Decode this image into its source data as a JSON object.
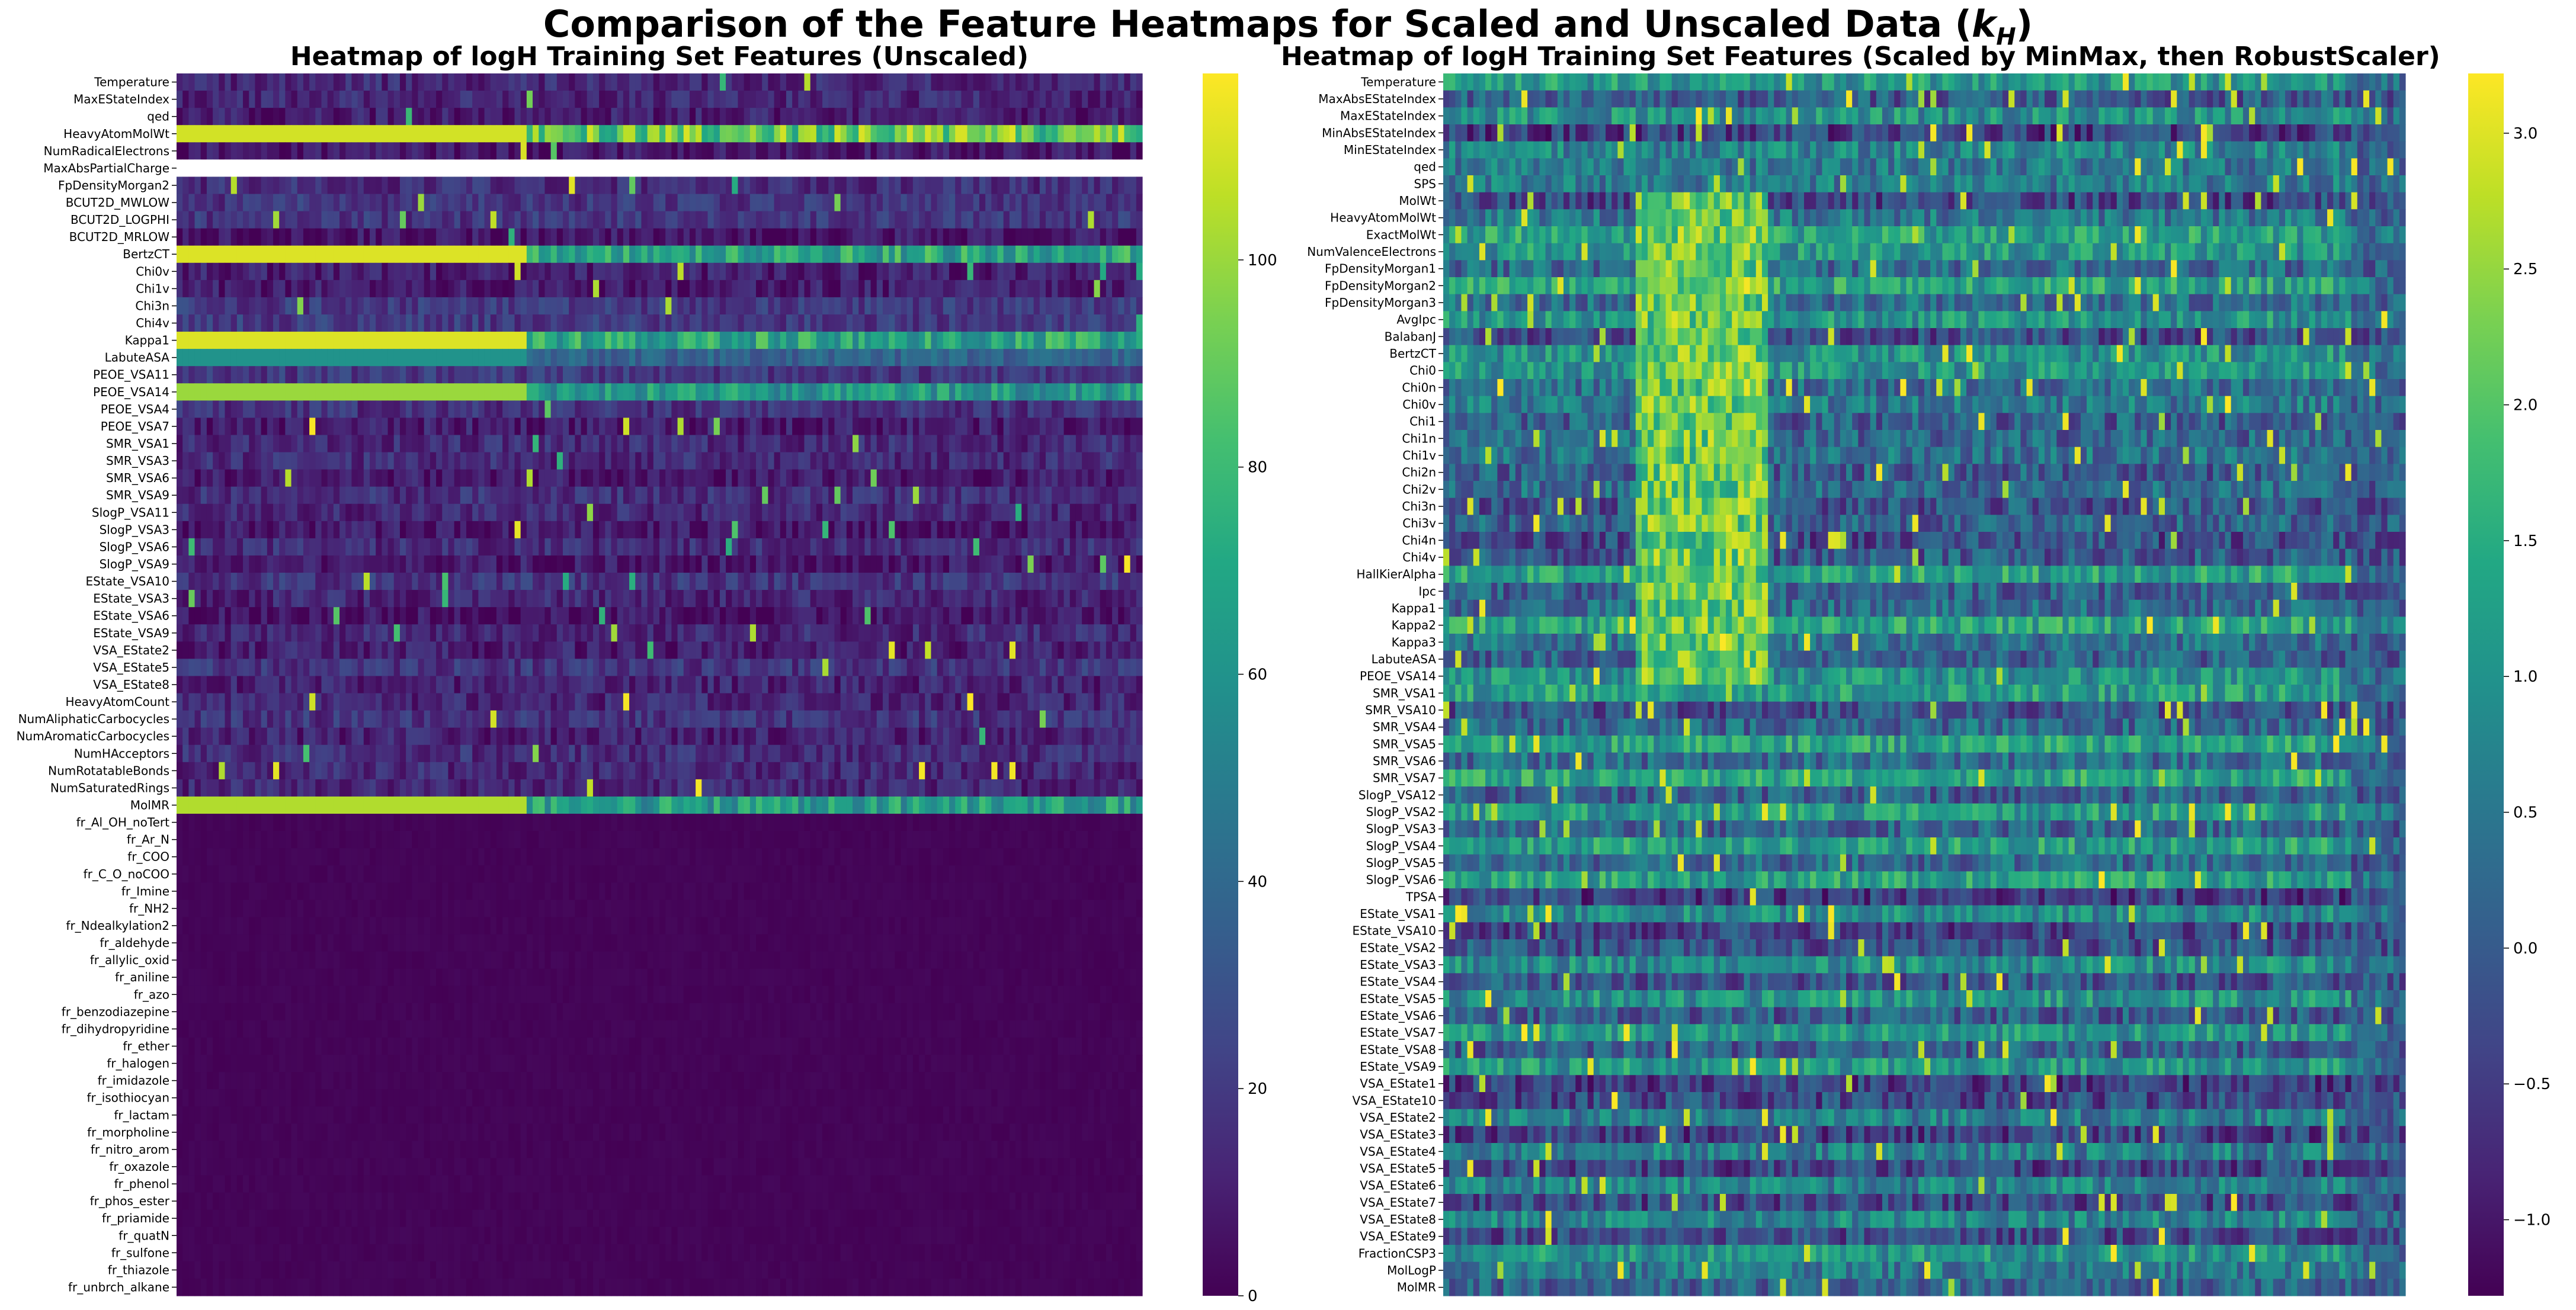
{
  "suptitle": "Comparison of the Feature Heatmaps for Scaled and Unscaled Data (",
  "suptitle_math": "k",
  "suptitle_sub": "H",
  "suptitle_end": ")",
  "colormap": "viridis",
  "colors": {
    "viridis_low": "#440154",
    "viridis_mid": "#21918c",
    "viridis_high": "#fde725",
    "missing": "#ffffff"
  },
  "chart_data": [
    {
      "type": "heatmap",
      "title": "Heatmap of logH Training Set Features (Unscaled)",
      "xlabel": "",
      "ylabel": "",
      "x_tick_labels": "none",
      "colorbar": {
        "range": [
          0,
          118
        ],
        "ticks": [
          0,
          20,
          40,
          60,
          80,
          100
        ]
      },
      "rows": [
        "Temperature",
        "MaxEStateIndex",
        "qed",
        "HeavyAtomMolWt",
        "NumRadicalElectrons",
        "MaxAbsPartialCharge",
        "FpDensityMorgan2",
        "BCUT2D_MWLOW",
        "BCUT2D_LOGPHI",
        "BCUT2D_MRLOW",
        "BertzCT",
        "Chi0v",
        "Chi1v",
        "Chi3n",
        "Chi4v",
        "Kappa1",
        "LabuteASA",
        "PEOE_VSA11",
        "PEOE_VSA14",
        "PEOE_VSA4",
        "PEOE_VSA7",
        "SMR_VSA1",
        "SMR_VSA3",
        "SMR_VSA6",
        "SMR_VSA9",
        "SlogP_VSA11",
        "SlogP_VSA3",
        "SlogP_VSA6",
        "SlogP_VSA9",
        "EState_VSA10",
        "EState_VSA3",
        "EState_VSA6",
        "EState_VSA9",
        "VSA_EState2",
        "VSA_EState5",
        "VSA_EState8",
        "HeavyAtomCount",
        "NumAliphaticCarbocycles",
        "NumAromaticCarbocycles",
        "NumHAcceptors",
        "NumRotatableBonds",
        "NumSaturatedRings",
        "MolMR",
        "fr_Al_OH_noTert",
        "fr_Ar_N",
        "fr_COO",
        "fr_C_O_noCOO",
        "fr_Imine",
        "fr_NH2",
        "fr_Ndealkylation2",
        "fr_aldehyde",
        "fr_allylic_oxid",
        "fr_aniline",
        "fr_azo",
        "fr_benzodiazepine",
        "fr_dihydropyridine",
        "fr_ether",
        "fr_halogen",
        "fr_imidazole",
        "fr_isothiocyan",
        "fr_lactam",
        "fr_morpholine",
        "fr_nitro_arom",
        "fr_oxazole",
        "fr_phenol",
        "fr_phos_ester",
        "fr_priamide",
        "fr_quatN",
        "fr_sulfone",
        "fr_thiazole",
        "fr_unbrch_alkane"
      ],
      "high_value_rows": {
        "HeavyAtomMolWt": 110,
        "BertzCT": 112,
        "Kappa1": 112,
        "PEOE_VSA14": 100,
        "MolMR": 104,
        "LabuteASA": 60
      },
      "missing_rows": [
        "MaxAbsPartialCharge"
      ]
    },
    {
      "type": "heatmap",
      "title": "Heatmap of logH Training Set Features (Scaled by MinMax, then RobustScaler)",
      "xlabel": "",
      "ylabel": "",
      "x_tick_labels": "none",
      "colorbar": {
        "range": [
          -1.28,
          3.22
        ],
        "ticks": [
          -1.0,
          -0.5,
          0.0,
          0.5,
          1.0,
          1.5,
          2.0,
          2.5,
          3.0
        ]
      },
      "rows": [
        "Temperature",
        "MaxAbsEStateIndex",
        "MaxEStateIndex",
        "MinAbsEStateIndex",
        "MinEStateIndex",
        "qed",
        "SPS",
        "MolWt",
        "HeavyAtomMolWt",
        "ExactMolWt",
        "NumValenceElectrons",
        "FpDensityMorgan1",
        "FpDensityMorgan2",
        "FpDensityMorgan3",
        "AvgIpc",
        "BalabanJ",
        "BertzCT",
        "Chi0",
        "Chi0n",
        "Chi0v",
        "Chi1",
        "Chi1n",
        "Chi1v",
        "Chi2n",
        "Chi2v",
        "Chi3n",
        "Chi3v",
        "Chi4n",
        "Chi4v",
        "HallKierAlpha",
        "Ipc",
        "Kappa1",
        "Kappa2",
        "Kappa3",
        "LabuteASA",
        "PEOE_VSA14",
        "SMR_VSA1",
        "SMR_VSA10",
        "SMR_VSA4",
        "SMR_VSA5",
        "SMR_VSA6",
        "SMR_VSA7",
        "SlogP_VSA12",
        "SlogP_VSA2",
        "SlogP_VSA3",
        "SlogP_VSA4",
        "SlogP_VSA5",
        "SlogP_VSA6",
        "TPSA",
        "EState_VSA1",
        "EState_VSA10",
        "EState_VSA2",
        "EState_VSA3",
        "EState_VSA4",
        "EState_VSA5",
        "EState_VSA6",
        "EState_VSA7",
        "EState_VSA8",
        "EState_VSA9",
        "VSA_EState1",
        "VSA_EState10",
        "VSA_EState2",
        "VSA_EState3",
        "VSA_EState4",
        "VSA_EState5",
        "VSA_EState6",
        "VSA_EState7",
        "VSA_EState8",
        "VSA_EState9",
        "FractionCSP3",
        "MolLogP",
        "MolMR"
      ]
    }
  ]
}
